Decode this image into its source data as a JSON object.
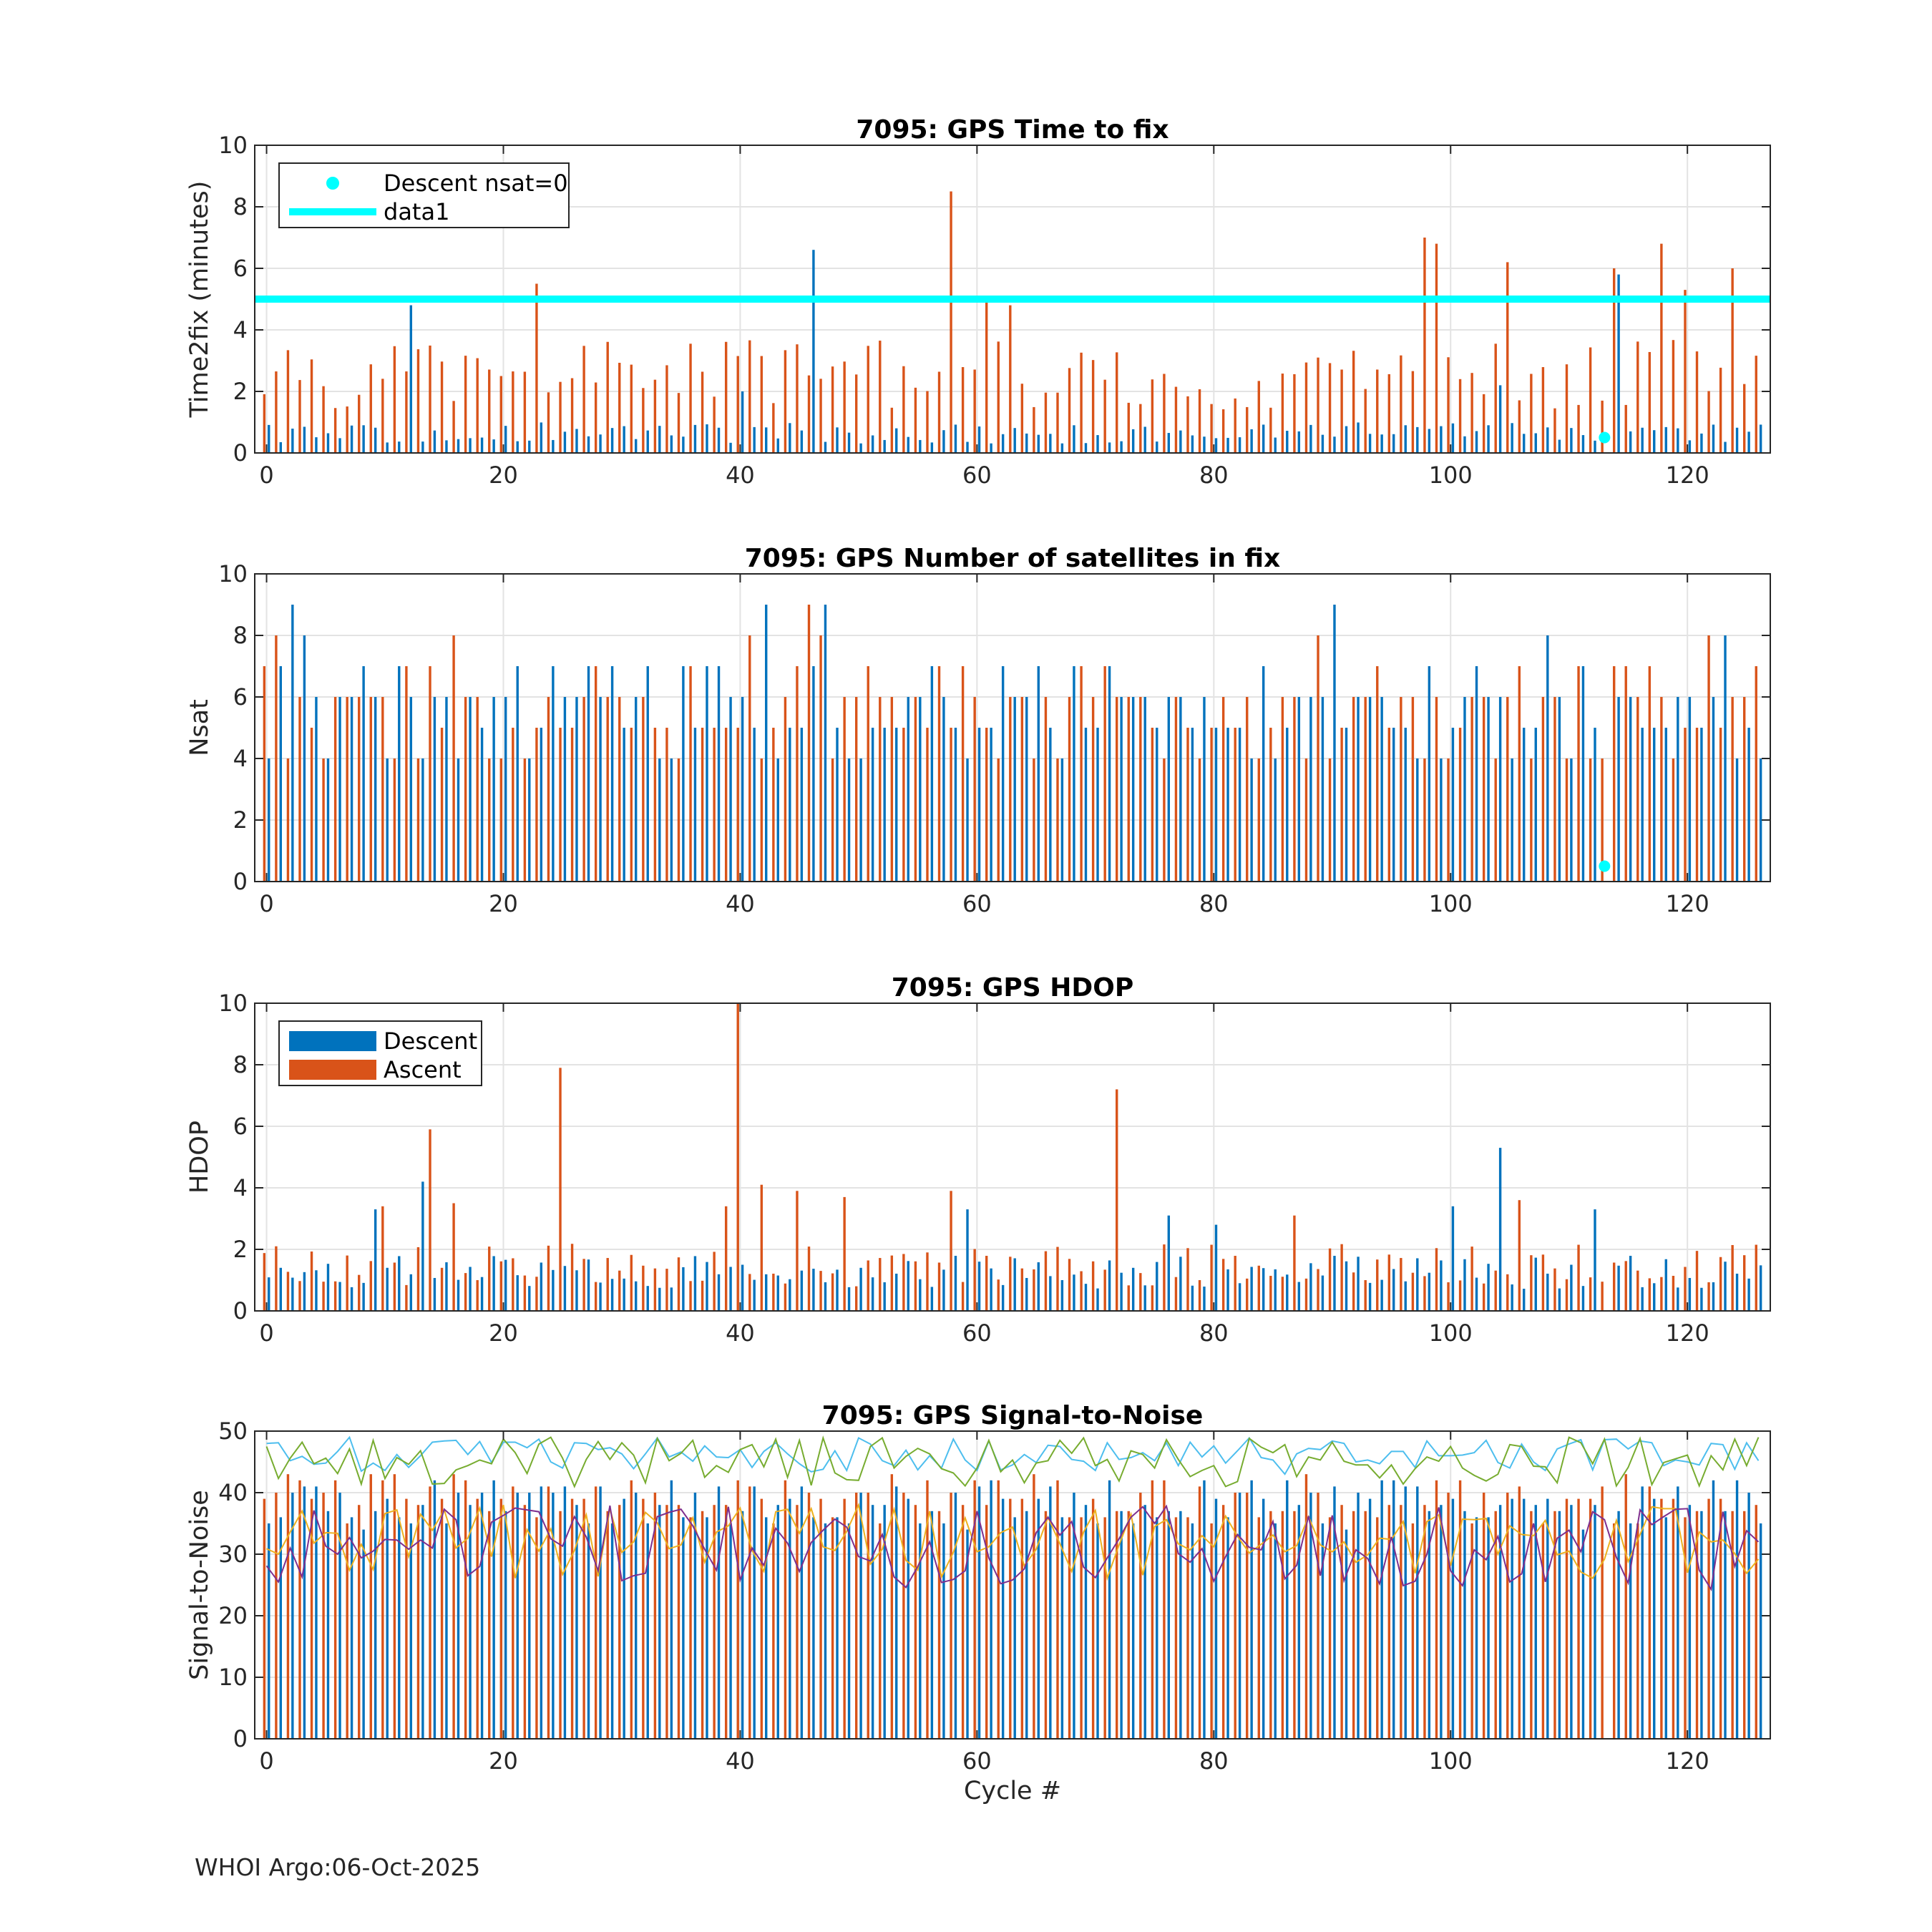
{
  "chart_data": [
    {
      "type": "bar",
      "title": "7095: GPS Time to fix",
      "xlabel": "",
      "ylabel": "Time2fix (minutes)",
      "xlim": [
        -1,
        127
      ],
      "ylim": [
        0,
        10
      ],
      "xticks": [
        "0",
        "20",
        "40",
        "60",
        "80",
        "100",
        "120"
      ],
      "yticks": [
        "0",
        "2",
        "4",
        "6",
        "8",
        "10"
      ],
      "legend": [
        "Descent nsat=0",
        "data1"
      ],
      "legend_location": "top-left",
      "reference_line": {
        "name": "data1",
        "y": 5,
        "color": "#00ffff"
      },
      "markers": [
        {
          "name": "Descent nsat=0",
          "x": 113,
          "y": 0.5,
          "color": "#00ffff"
        }
      ],
      "series": [
        {
          "name": "Descent",
          "color": "#0072bd"
        },
        {
          "name": "Ascent",
          "color": "#d95319"
        }
      ]
    },
    {
      "type": "bar",
      "title": "7095: GPS Number of satellites in fix",
      "xlabel": "",
      "ylabel": "Nsat",
      "xlim": [
        -1,
        127
      ],
      "ylim": [
        0,
        10
      ],
      "xticks": [
        "0",
        "20",
        "40",
        "60",
        "80",
        "100",
        "120"
      ],
      "yticks": [
        "0",
        "2",
        "4",
        "6",
        "8",
        "10"
      ],
      "markers": [
        {
          "name": "Descent nsat=0",
          "x": 113,
          "y": 0.5,
          "color": "#00ffff"
        }
      ],
      "series": [
        {
          "name": "Descent",
          "color": "#0072bd"
        },
        {
          "name": "Ascent",
          "color": "#d95319"
        }
      ]
    },
    {
      "type": "bar",
      "title": "7095: GPS HDOP",
      "xlabel": "",
      "ylabel": "HDOP",
      "xlim": [
        -1,
        127
      ],
      "ylim": [
        0,
        10
      ],
      "xticks": [
        "0",
        "20",
        "40",
        "60",
        "80",
        "100",
        "120"
      ],
      "yticks": [
        "0",
        "2",
        "4",
        "6",
        "8",
        "10"
      ],
      "legend": [
        "Descent",
        "Ascent"
      ],
      "legend_location": "top-left",
      "series": [
        {
          "name": "Descent",
          "color": "#0072bd"
        },
        {
          "name": "Ascent",
          "color": "#d95319"
        }
      ]
    },
    {
      "type": "bar",
      "title": "7095: GPS Signal-to-Noise",
      "xlabel": "Cycle #",
      "ylabel": "Signal-to-Noise",
      "xlim": [
        -1,
        127
      ],
      "ylim": [
        0,
        50
      ],
      "xticks": [
        "0",
        "20",
        "40",
        "60",
        "80",
        "100",
        "120"
      ],
      "yticks": [
        "0",
        "10",
        "20",
        "30",
        "40",
        "50"
      ],
      "series": [
        {
          "name": "Descent",
          "color": "#0072bd"
        },
        {
          "name": "Ascent",
          "color": "#d95319"
        }
      ],
      "lines": [
        {
          "name": "snr-line-1",
          "color": "#4dbeee"
        },
        {
          "name": "snr-line-2",
          "color": "#77ac30"
        },
        {
          "name": "snr-line-3",
          "color": "#edb120"
        },
        {
          "name": "snr-line-4",
          "color": "#7e2f8e"
        }
      ]
    }
  ],
  "footer": "WHOI Argo:06-Oct-2025"
}
